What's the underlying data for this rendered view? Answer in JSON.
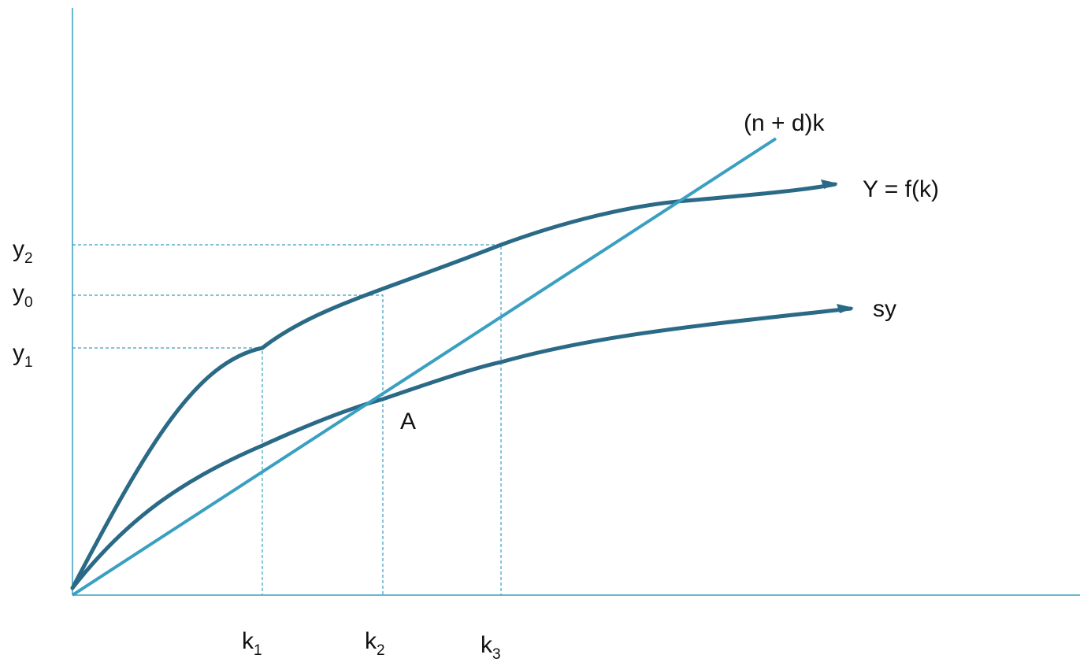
{
  "colors": {
    "axis": "#3a9fc0",
    "curve_dark": "#2a6a86",
    "line_light": "#3a9fc0",
    "guide": "#3a9fc0",
    "text": "#111111"
  },
  "labels": {
    "line": "(n + d)k",
    "production": "Y = f(k)",
    "savings": "sy",
    "point_a": "A"
  },
  "y_ticks": [
    {
      "base": "y",
      "sub": "2"
    },
    {
      "base": "y",
      "sub": "0"
    },
    {
      "base": "y",
      "sub": "1"
    }
  ],
  "x_ticks": [
    {
      "base": "k",
      "sub": "1"
    },
    {
      "base": "k",
      "sub": "2"
    },
    {
      "base": "k",
      "sub": "3"
    }
  ]
}
